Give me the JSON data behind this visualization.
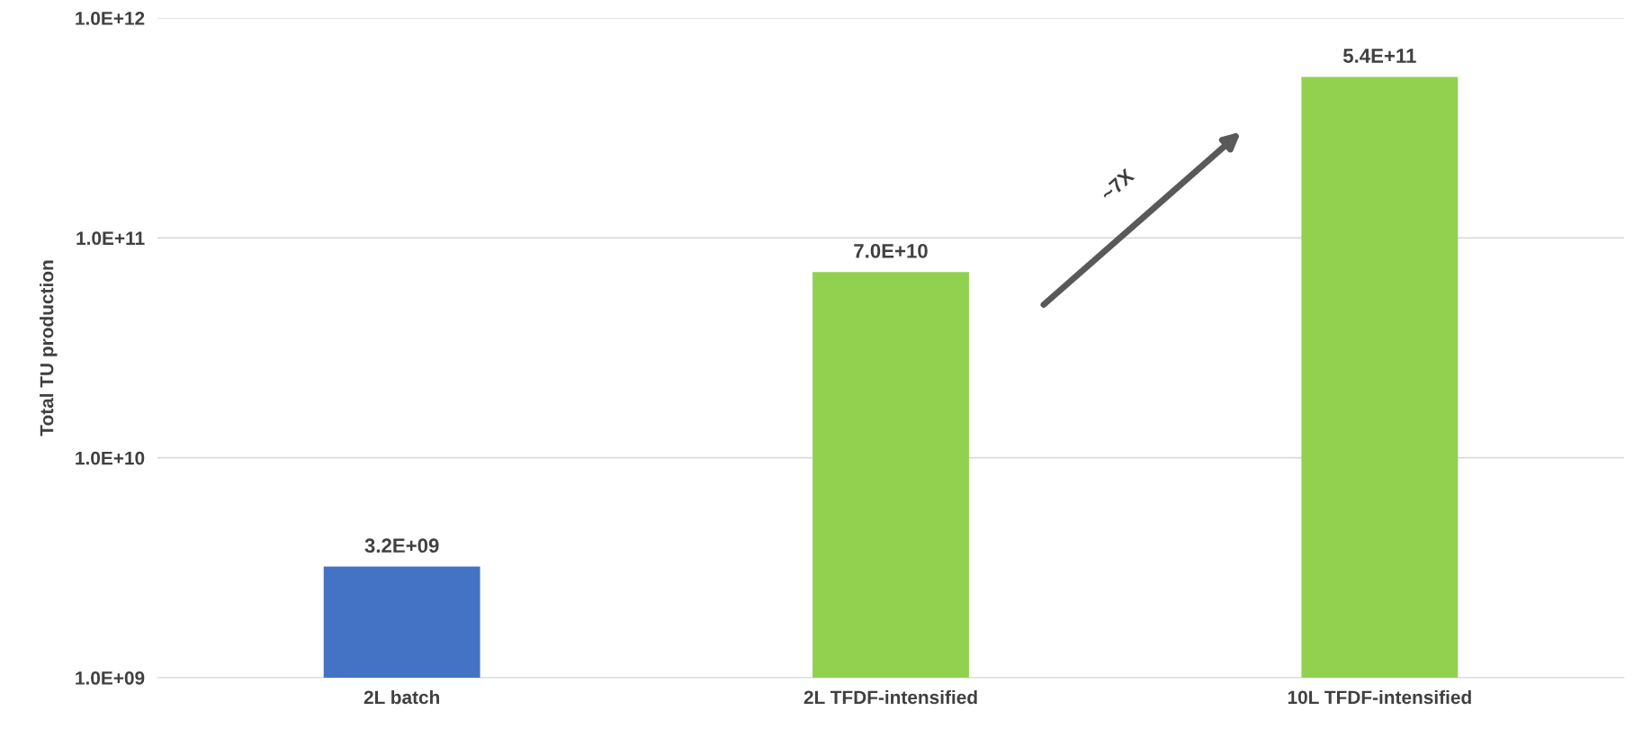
{
  "chart_data": {
    "type": "bar",
    "ylabel": "Total TU production",
    "categories": [
      "2L batch",
      "2L TFDF-intensified",
      "10L TFDF-intensified"
    ],
    "values": [
      3200000000.0,
      70000000000.0,
      540000000000.0
    ],
    "colors": [
      "#4472c4",
      "#92d050",
      "#92d050"
    ],
    "value_labels": [
      "3.2E+09",
      "7.0E+10",
      "5.4E+11"
    ],
    "log": "y",
    "ylim": [
      1000000000.0,
      1000000000000.0
    ],
    "yticks": [
      {
        "value": 1000000000.0,
        "label": "1.0E+09"
      },
      {
        "value": 10000000000.0,
        "label": "1.0E+10"
      },
      {
        "value": 100000000000.0,
        "label": "1.0E+11"
      },
      {
        "value": 1000000000000.0,
        "label": "1.0E+12"
      }
    ],
    "grid": "y",
    "annotations": [
      "~7X"
    ]
  }
}
